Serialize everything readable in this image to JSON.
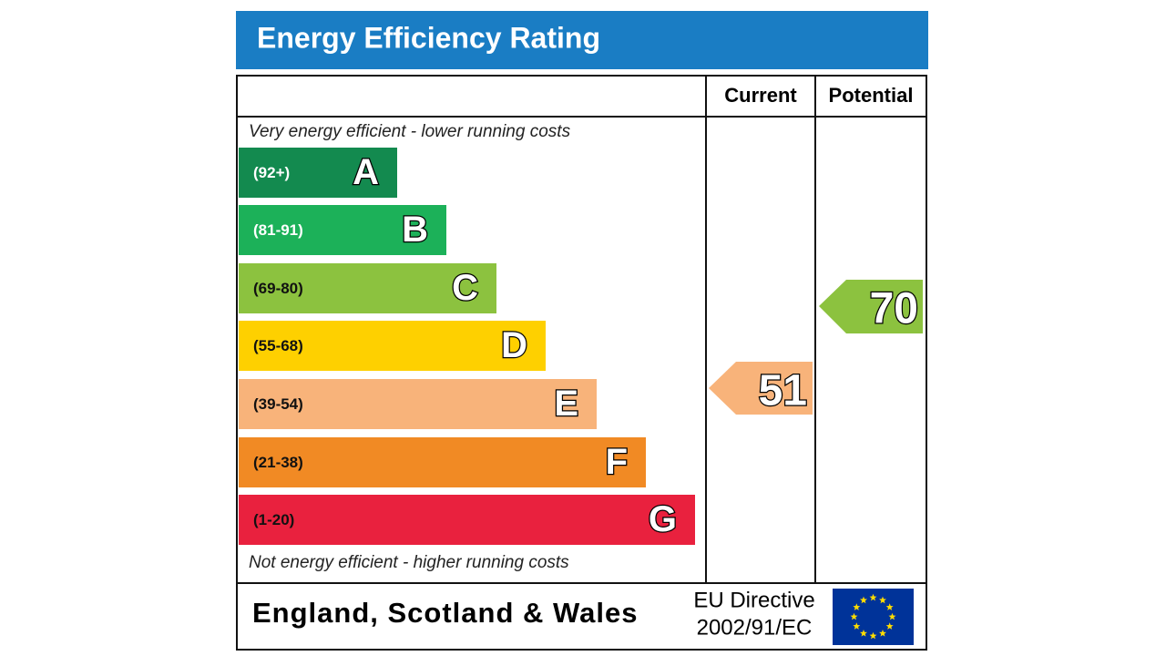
{
  "header": {
    "title": "Energy Efficiency Rating",
    "columns": [
      "Current",
      "Potential"
    ]
  },
  "top_note": "Very energy efficient - lower running costs",
  "bands": [
    {
      "range": "(92+)",
      "letter": "A"
    },
    {
      "range": "(81-91)",
      "letter": "B"
    },
    {
      "range": "(69-80)",
      "letter": "C"
    },
    {
      "range": "(55-68)",
      "letter": "D"
    },
    {
      "range": "(39-54)",
      "letter": "E"
    },
    {
      "range": "(21-38)",
      "letter": "F"
    },
    {
      "range": "(1-20)",
      "letter": "G"
    }
  ],
  "bottom_note": "Not energy efficient - higher running costs",
  "current": {
    "value": 51
  },
  "potential": {
    "value": 70
  },
  "footer": {
    "region": "England, Scotland & Wales",
    "directive": [
      "EU Directive",
      "2002/91/EC"
    ]
  }
}
